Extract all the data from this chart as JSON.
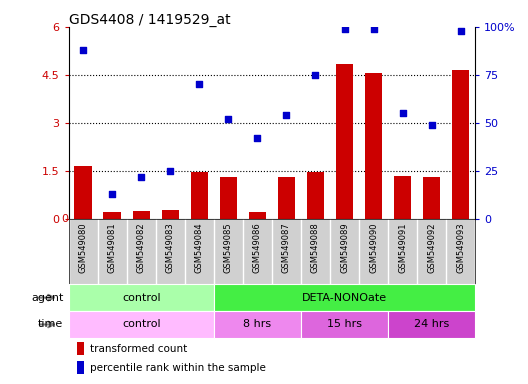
{
  "title": "GDS4408 / 1419529_at",
  "samples": [
    "GSM549080",
    "GSM549081",
    "GSM549082",
    "GSM549083",
    "GSM549084",
    "GSM549085",
    "GSM549086",
    "GSM549087",
    "GSM549088",
    "GSM549089",
    "GSM549090",
    "GSM549091",
    "GSM549092",
    "GSM549093"
  ],
  "transformed_count": [
    1.65,
    0.2,
    0.25,
    0.27,
    1.45,
    1.3,
    0.2,
    1.3,
    1.45,
    4.85,
    4.55,
    1.35,
    1.3,
    4.65
  ],
  "percentile_rank": [
    88,
    13,
    22,
    25,
    70,
    52,
    42,
    54,
    75,
    99,
    99,
    55,
    49,
    98
  ],
  "bar_color": "#cc0000",
  "dot_color": "#0000cc",
  "ylim_left": [
    0,
    6
  ],
  "ylim_right": [
    0,
    100
  ],
  "yticks_left": [
    0,
    1.5,
    3.0,
    4.5,
    6.0
  ],
  "yticks_right": [
    0,
    25,
    50,
    75,
    100
  ],
  "ytick_labels_left": [
    "0",
    "1.5",
    "3",
    "4.5",
    "6"
  ],
  "ytick_labels_right": [
    "0",
    "25",
    "50",
    "75",
    "100%"
  ],
  "agent_groups": [
    {
      "label": "control",
      "start": 0,
      "end": 4,
      "color": "#aaffaa"
    },
    {
      "label": "DETA-NONOate",
      "start": 5,
      "end": 13,
      "color": "#44ee44"
    }
  ],
  "time_groups": [
    {
      "label": "control",
      "start": 0,
      "end": 4,
      "color": "#ffbbff"
    },
    {
      "label": "8 hrs",
      "start": 5,
      "end": 7,
      "color": "#ee88ee"
    },
    {
      "label": "15 hrs",
      "start": 8,
      "end": 10,
      "color": "#dd66dd"
    },
    {
      "label": "24 hrs",
      "start": 11,
      "end": 13,
      "color": "#cc44cc"
    }
  ],
  "legend_bar_label": "transformed count",
  "legend_dot_label": "percentile rank within the sample",
  "bg_color": "#ffffff",
  "agent_label": "agent",
  "time_label": "time",
  "xtick_bg_color": "#d0d0d0",
  "xtick_sep_color": "#ffffff"
}
